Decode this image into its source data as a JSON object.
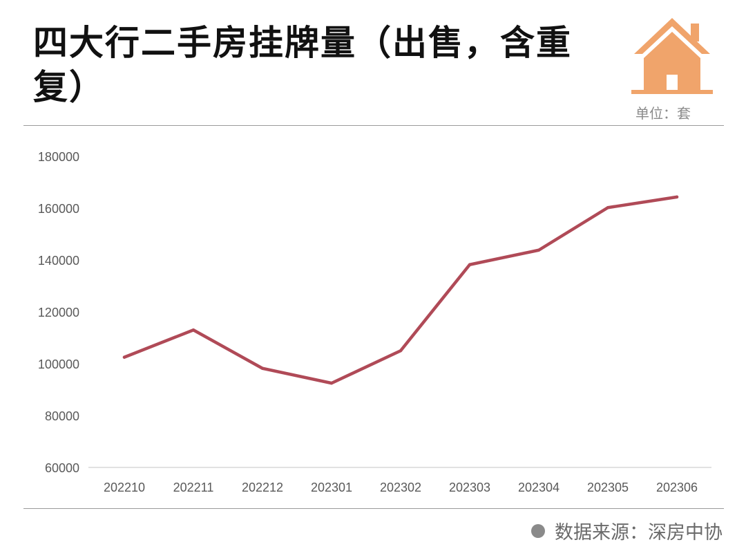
{
  "title": "四大行二手房挂牌量（出售，含重复）",
  "unit": "单位：套",
  "source": "数据来源：深房中协",
  "colors": {
    "line": "#b04a57",
    "icon": "#f0a46b",
    "axis": "#d9d9d9",
    "tick_text": "#595959"
  },
  "icon": "house-icon",
  "chart_data": {
    "type": "line",
    "categories": [
      "202210",
      "202211",
      "202212",
      "202301",
      "202302",
      "202303",
      "202304",
      "202305",
      "202306"
    ],
    "series": [
      {
        "values": [
          102500,
          113000,
          98200,
          92500,
          105000,
          138200,
          143800,
          160200,
          164300
        ]
      }
    ],
    "y_ticks": [
      "180000",
      "160000",
      "140000",
      "120000",
      "100000",
      "80000",
      "60000"
    ],
    "ylim": [
      60000,
      180000
    ],
    "grid": false,
    "legend": "none"
  }
}
